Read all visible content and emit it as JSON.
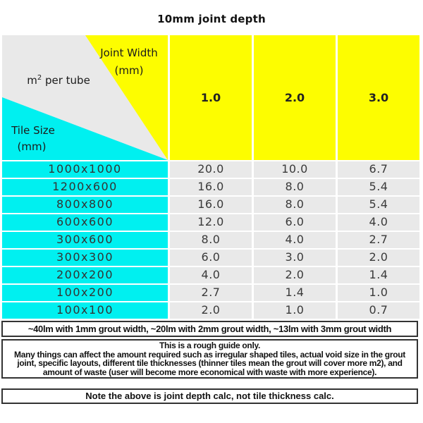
{
  "chart_data": {
    "type": "table",
    "title": "10mm joint depth",
    "column_group": {
      "label": "Joint Width",
      "unit": "(mm)"
    },
    "row_group": {
      "label": "Tile Size",
      "unit": "(mm)"
    },
    "value_label": {
      "prefix": "m",
      "sup": "2",
      "suffix": " per tube",
      "full": "m² per tube"
    },
    "columns": [
      "1.0",
      "2.0",
      "3.0"
    ],
    "rows": [
      {
        "tile": "1000x1000",
        "values": [
          "20.0",
          "10.0",
          "6.7"
        ]
      },
      {
        "tile": "1200x600",
        "values": [
          "16.0",
          "8.0",
          "5.4"
        ]
      },
      {
        "tile": "800x800",
        "values": [
          "16.0",
          "8.0",
          "5.4"
        ]
      },
      {
        "tile": "600x600",
        "values": [
          "12.0",
          "6.0",
          "4.0"
        ]
      },
      {
        "tile": "300x600",
        "values": [
          "8.0",
          "4.0",
          "2.7"
        ]
      },
      {
        "tile": "300x300",
        "values": [
          "6.0",
          "3.0",
          "2.0"
        ]
      },
      {
        "tile": "200x200",
        "values": [
          "4.0",
          "2.0",
          "1.4"
        ]
      },
      {
        "tile": "100x200",
        "values": [
          "2.7",
          "1.4",
          "1.0"
        ]
      },
      {
        "tile": "100x100",
        "values": [
          "2.0",
          "1.0",
          "0.7"
        ]
      }
    ]
  },
  "notes": {
    "grout_width": "~40lm with 1mm grout width, ~20lm with 2mm grout width, ~13lm with 3mm grout width",
    "guide_lines": [
      "This is a rough guide only.",
      "Many things can affect the amount required such as irregular shaped tiles, actual void size in the grout",
      "joint, specific layouts, different tile thicknesses (thinner tiles mean the grout will cover more m2), and",
      "amount of waste (user will become more economical with waste with more experience)."
    ],
    "joint_depth": "Note the above is joint depth calc, not tile thickness calc."
  },
  "colors": {
    "header_yellow": "#fdfd00",
    "tile_cyan": "#00f0f0",
    "cell_gray": "#e9e9e9",
    "separator_white": "#ffffff",
    "note_border": "#333333"
  }
}
